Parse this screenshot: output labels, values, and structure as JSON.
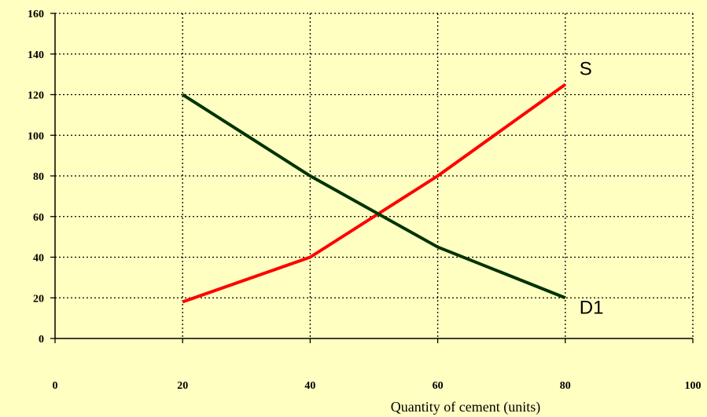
{
  "chart_data": {
    "type": "line",
    "title": "",
    "xlabel": "Quantity of cement (units)",
    "ylabel": "",
    "xlim": [
      0,
      100
    ],
    "ylim": [
      0,
      160
    ],
    "x_ticks": [
      "0",
      "20",
      "40",
      "60",
      "80",
      "100"
    ],
    "y_ticks": [
      "0",
      "20",
      "40",
      "60",
      "80",
      "100",
      "120",
      "140",
      "160"
    ],
    "grid": true,
    "series": [
      {
        "name": "S",
        "color": "#ff0000",
        "x": [
          20,
          40,
          60,
          80
        ],
        "y": [
          18,
          40,
          80,
          125
        ]
      },
      {
        "name": "D1",
        "color": "#003300",
        "x": [
          20,
          40,
          60,
          80
        ],
        "y": [
          120,
          80,
          45,
          20
        ]
      }
    ]
  },
  "colors": {
    "background": "#ffffc2",
    "grid": "#000000",
    "axis": "#000000"
  }
}
